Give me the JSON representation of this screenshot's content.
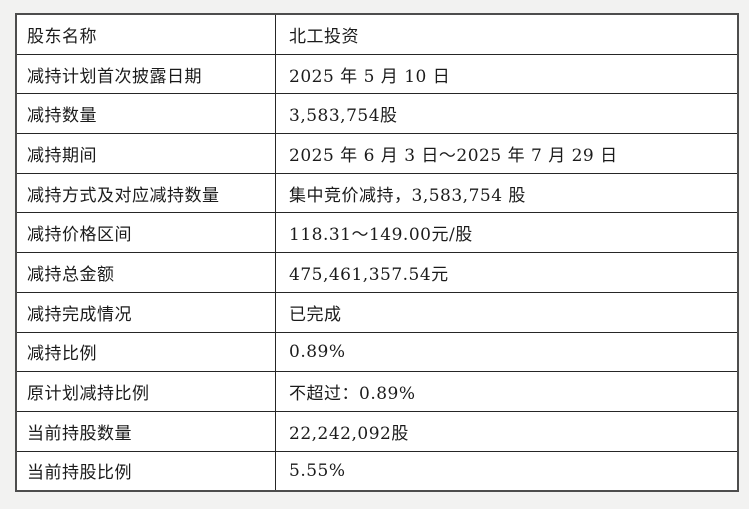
{
  "page": {
    "background_color": "#f2f2f1",
    "table_border_color": "#4d4d4d"
  },
  "table": {
    "columns": [
      "label",
      "value"
    ],
    "rows": [
      {
        "label": "股东名称",
        "value": "北工投资"
      },
      {
        "label": "减持计划首次披露日期",
        "value": "2025 年 5 月 10 日"
      },
      {
        "label": "减持数量",
        "value": "3,583,754股"
      },
      {
        "label": "减持期间",
        "value": "2025 年 6 月 3 日～2025 年 7 月 29 日"
      },
      {
        "label": "减持方式及对应减持数量",
        "value": "集中竞价减持，3,583,754 股"
      },
      {
        "label": "减持价格区间",
        "value": "118.31～149.00元/股"
      },
      {
        "label": "减持总金额",
        "value": "475,461,357.54元"
      },
      {
        "label": "减持完成情况",
        "value": "已完成"
      },
      {
        "label": "减持比例",
        "value": "0.89%"
      },
      {
        "label": "原计划减持比例",
        "value": "不超过：0.89%"
      },
      {
        "label": "当前持股数量",
        "value": "22,242,092股"
      },
      {
        "label": "当前持股比例",
        "value": "5.55%"
      }
    ]
  }
}
